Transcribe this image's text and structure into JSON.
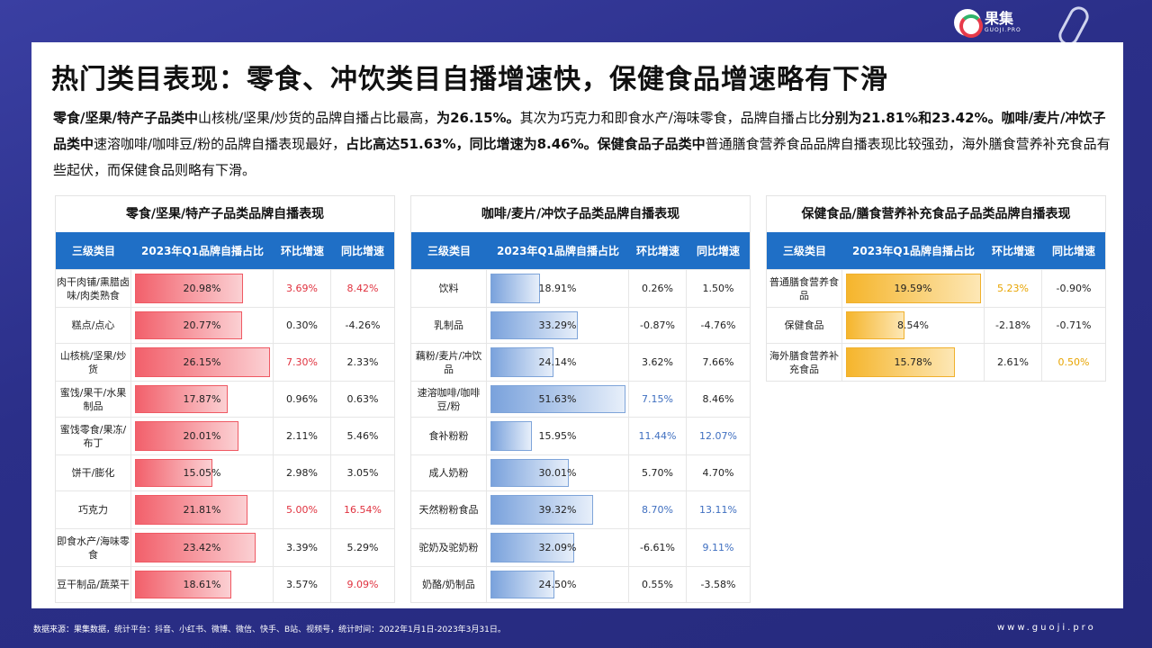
{
  "brand": {
    "name": "果集",
    "sub": "GUOJI.PRO"
  },
  "title": "热门类目表现：零食、冲饮类目自播增速快，保健食品增速略有下滑",
  "summary": [
    {
      "text": "零食/坚果/特产子品类中",
      "bold": true
    },
    {
      "text": "山核桃/坚果/炒货的品牌自播占比最高，",
      "bold": false
    },
    {
      "text": "为26.15%。",
      "bold": true
    },
    {
      "text": "其次为巧克力和即食水产/海味零食，品牌自播占比",
      "bold": false
    },
    {
      "text": "分别为21.81%和23.42%。咖啡/麦片/冲饮子品类中",
      "bold": true
    },
    {
      "text": "速溶咖啡/咖啡豆/粉的品牌自播表现最好，",
      "bold": false
    },
    {
      "text": "占比高达51.63%，同比增速为8.46%。保健食品子品类中",
      "bold": true
    },
    {
      "text": "普通膳食营养食品品牌自播表现比较强劲，海外膳食营养补充食品有些起伏，而保健食品则略有下滑。",
      "bold": false
    }
  ],
  "headers": {
    "cat": "三级类目",
    "share": "2023年Q1品牌自播占比",
    "mom": "环比增速",
    "yoy": "同比增速"
  },
  "tables": [
    {
      "title": "零食/坚果/特产子品类品牌自播表现",
      "theme": "red",
      "scale": 26.15,
      "rows": [
        {
          "cat": "肉干肉铺/熏腊卤味/肉类熟食",
          "share": 20.98,
          "share_label": "20.98%",
          "mom": "3.69%",
          "yoy": "8.42%",
          "mom_hl": true,
          "yoy_hl": true
        },
        {
          "cat": "糕点/点心",
          "share": 20.77,
          "share_label": "20.77%",
          "mom": "0.30%",
          "yoy": "-4.26%",
          "mom_hl": false,
          "yoy_hl": false
        },
        {
          "cat": "山核桃/坚果/炒货",
          "share": 26.15,
          "share_label": "26.15%",
          "mom": "7.30%",
          "yoy": "2.33%",
          "mom_hl": true,
          "yoy_hl": false
        },
        {
          "cat": "蜜饯/果干/水果制品",
          "share": 17.87,
          "share_label": "17.87%",
          "mom": "0.96%",
          "yoy": "0.63%",
          "mom_hl": false,
          "yoy_hl": false
        },
        {
          "cat": "蜜饯零食/果冻/布丁",
          "share": 20.01,
          "share_label": "20.01%",
          "mom": "2.11%",
          "yoy": "5.46%",
          "mom_hl": false,
          "yoy_hl": false
        },
        {
          "cat": "饼干/膨化",
          "share": 15.05,
          "share_label": "15.05%",
          "mom": "2.98%",
          "yoy": "3.05%",
          "mom_hl": false,
          "yoy_hl": false
        },
        {
          "cat": "巧克力",
          "share": 21.81,
          "share_label": "21.81%",
          "mom": "5.00%",
          "yoy": "16.54%",
          "mom_hl": true,
          "yoy_hl": true
        },
        {
          "cat": "即食水产/海味零食",
          "share": 23.42,
          "share_label": "23.42%",
          "mom": "3.39%",
          "yoy": "5.29%",
          "mom_hl": false,
          "yoy_hl": false
        },
        {
          "cat": "豆干制品/蔬菜干",
          "share": 18.61,
          "share_label": "18.61%",
          "mom": "3.57%",
          "yoy": "9.09%",
          "mom_hl": false,
          "yoy_hl": true
        }
      ]
    },
    {
      "title": "咖啡/麦片/冲饮子品类品牌自播表现",
      "theme": "blue",
      "scale": 51.63,
      "rows": [
        {
          "cat": "饮料",
          "share": 18.91,
          "share_label": "18.91%",
          "mom": "0.26%",
          "yoy": "1.50%",
          "mom_hl": false,
          "yoy_hl": false
        },
        {
          "cat": "乳制品",
          "share": 33.29,
          "share_label": "33.29%",
          "mom": "-0.87%",
          "yoy": "-4.76%",
          "mom_hl": false,
          "yoy_hl": false
        },
        {
          "cat": "藕粉/麦片/冲饮品",
          "share": 24.14,
          "share_label": "24.14%",
          "mom": "3.62%",
          "yoy": "7.66%",
          "mom_hl": false,
          "yoy_hl": false
        },
        {
          "cat": "速溶咖啡/咖啡豆/粉",
          "share": 51.63,
          "share_label": "51.63%",
          "mom": "7.15%",
          "yoy": "8.46%",
          "mom_hl": true,
          "yoy_hl": false
        },
        {
          "cat": "食补粉粉",
          "share": 15.95,
          "share_label": "15.95%",
          "mom": "11.44%",
          "yoy": "12.07%",
          "mom_hl": true,
          "yoy_hl": true
        },
        {
          "cat": "成人奶粉",
          "share": 30.01,
          "share_label": "30.01%",
          "mom": "5.70%",
          "yoy": "4.70%",
          "mom_hl": false,
          "yoy_hl": false
        },
        {
          "cat": "天然粉粉食品",
          "share": 39.32,
          "share_label": "39.32%",
          "mom": "8.70%",
          "yoy": "13.11%",
          "mom_hl": true,
          "yoy_hl": true
        },
        {
          "cat": "驼奶及驼奶粉",
          "share": 32.09,
          "share_label": "32.09%",
          "mom": "-6.61%",
          "yoy": "9.11%",
          "mom_hl": false,
          "yoy_hl": true
        },
        {
          "cat": "奶酪/奶制品",
          "share": 24.5,
          "share_label": "24.50%",
          "mom": "0.55%",
          "yoy": "-3.58%",
          "mom_hl": false,
          "yoy_hl": false
        }
      ]
    },
    {
      "title": "保健食品/膳食营养补充食品子品类品牌自播表现",
      "theme": "gold",
      "scale": 19.59,
      "rows": [
        {
          "cat": "普通膳食营养食品",
          "share": 19.59,
          "share_label": "19.59%",
          "mom": "5.23%",
          "yoy": "-0.90%",
          "mom_hl": true,
          "yoy_hl": false
        },
        {
          "cat": "保健食品",
          "share": 8.54,
          "share_label": "8.54%",
          "mom": "-2.18%",
          "yoy": "-0.71%",
          "mom_hl": false,
          "yoy_hl": false
        },
        {
          "cat": "海外膳食营养补充食品",
          "share": 15.78,
          "share_label": "15.78%",
          "mom": "2.61%",
          "yoy": "0.50%",
          "mom_hl": false,
          "yoy_hl": true
        }
      ]
    }
  ],
  "footer": {
    "source": "数据来源：果集数据，统计平台：抖音、小红书、微博、微信、快手、B站、视频号，统计时间：2022年1月1日-2023年3月31日。",
    "url": "www.guoji.pro"
  }
}
